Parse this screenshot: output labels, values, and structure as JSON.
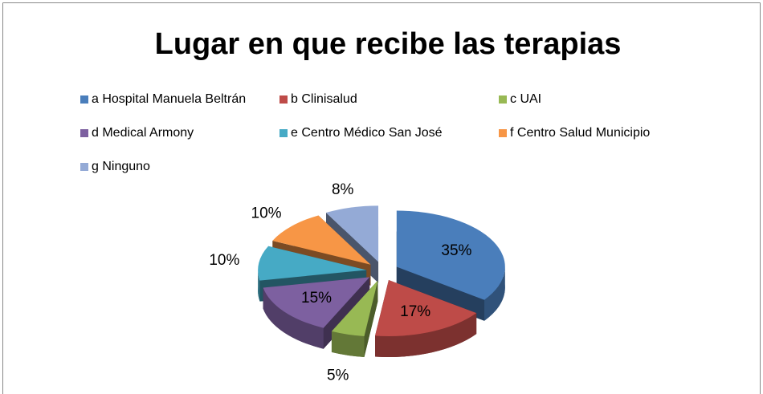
{
  "chart_data": {
    "type": "pie",
    "title": "Lugar en que recibe las terapias",
    "categories": [
      "a Hospital Manuela Beltrán",
      "b  Clinisalud",
      "c  UAI",
      "d Medical Armony",
      "e  Centro Médico San José",
      "f  Centro Salud Municipio",
      "g  Ninguno"
    ],
    "values": [
      35,
      17,
      5,
      15,
      10,
      10,
      8
    ],
    "value_labels": [
      "35%",
      "17%",
      "5%",
      "15%",
      "10%",
      "10%",
      "8%"
    ],
    "colors": [
      "#4a7ebb",
      "#be4b48",
      "#98b954",
      "#7d60a0",
      "#46aac5",
      "#f79646",
      "#94aad6"
    ]
  }
}
